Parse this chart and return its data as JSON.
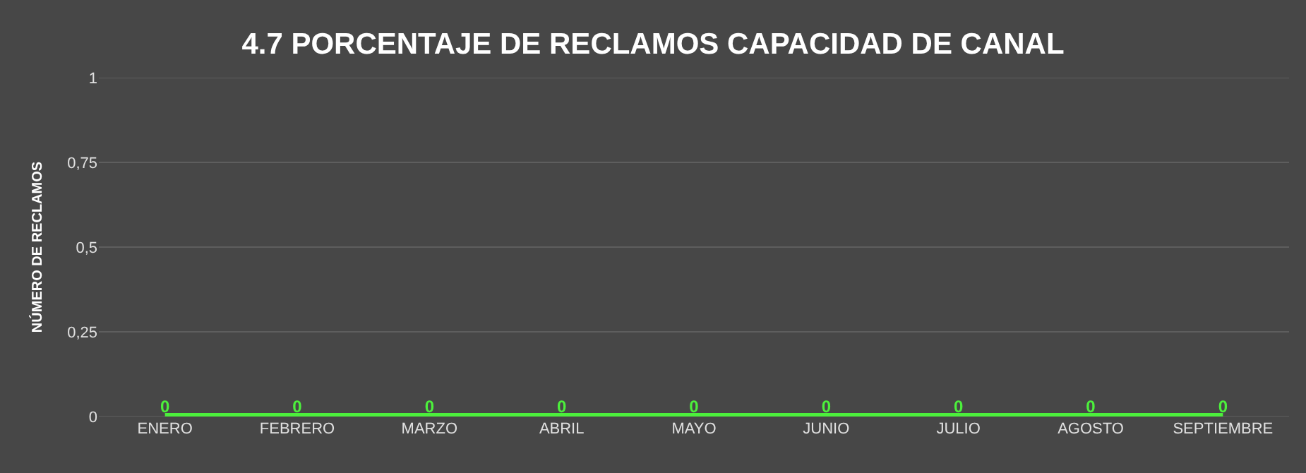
{
  "chart_data": {
    "type": "line",
    "title": "4.7 PORCENTAJE DE RECLAMOS CAPACIDAD DE CANAL",
    "ylabel": "NÚMERO DE RECLAMOS",
    "categories": [
      "ENERO",
      "FEBRERO",
      "MARZO",
      "ABRIL",
      "MAYO",
      "JUNIO",
      "JULIO",
      "AGOSTO",
      "SEPTIEMBRE"
    ],
    "series": [
      {
        "color": "#4cf03c",
        "values": [
          0,
          0,
          0,
          0,
          0,
          0,
          0,
          0,
          0
        ]
      }
    ],
    "ylim": [
      0,
      1
    ],
    "yticks": [
      0,
      {
        "value": 0.25,
        "label": "0,25"
      },
      {
        "value": 0.5,
        "label": "0,5"
      },
      {
        "value": 0.75,
        "label": "0,75"
      },
      1
    ],
    "grid": "y",
    "data_labels": true,
    "marker": "none",
    "line_style": "solid"
  }
}
